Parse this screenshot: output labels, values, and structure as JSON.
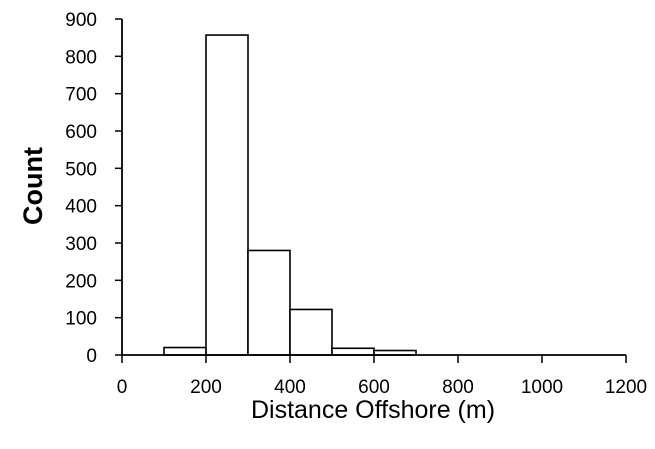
{
  "chart_data": {
    "type": "bar",
    "title": "",
    "xlabel": "Distance Offshore (m)",
    "ylabel": "Count",
    "xlim": [
      0,
      1200
    ],
    "ylim": [
      0,
      900
    ],
    "xticks": [
      "0",
      "200",
      "400",
      "600",
      "800",
      "1000",
      "1200"
    ],
    "yticks": [
      "0",
      "100",
      "200",
      "300",
      "400",
      "500",
      "600",
      "700",
      "800",
      "900"
    ],
    "grid": false,
    "bins": [
      {
        "start": 0,
        "end": 100,
        "value": 0
      },
      {
        "start": 100,
        "end": 200,
        "value": 20
      },
      {
        "start": 200,
        "end": 300,
        "value": 857
      },
      {
        "start": 300,
        "end": 400,
        "value": 280
      },
      {
        "start": 400,
        "end": 500,
        "value": 122
      },
      {
        "start": 500,
        "end": 600,
        "value": 18
      },
      {
        "start": 600,
        "end": 700,
        "value": 12
      },
      {
        "start": 700,
        "end": 800,
        "value": 0
      },
      {
        "start": 800,
        "end": 900,
        "value": 0
      },
      {
        "start": 900,
        "end": 1000,
        "value": 0
      },
      {
        "start": 1000,
        "end": 1100,
        "value": 0
      },
      {
        "start": 1100,
        "end": 1200,
        "value": 0
      }
    ]
  }
}
